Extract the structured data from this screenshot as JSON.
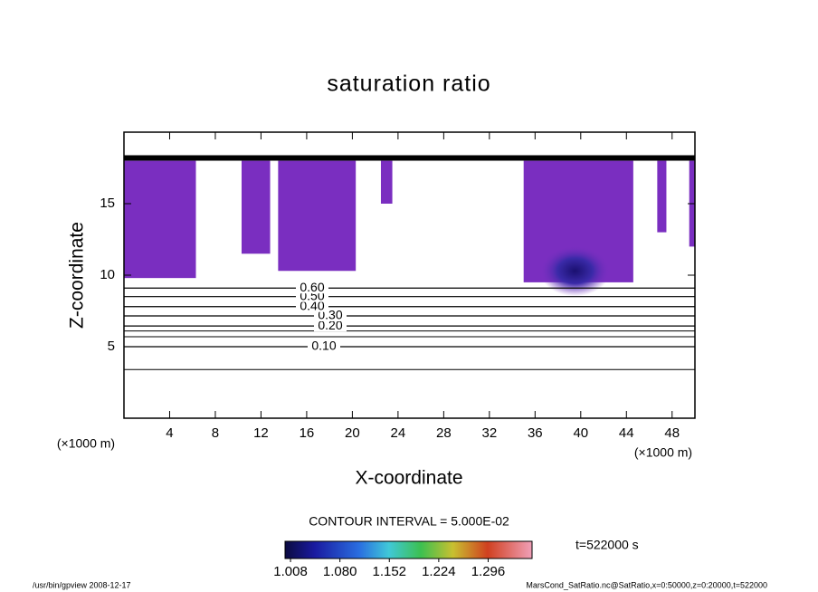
{
  "chart_data": {
    "type": "contour",
    "title": "saturation ratio",
    "xlabel": "X-coordinate",
    "ylabel": "Z-coordinate",
    "xunit": "(×1000 m)",
    "yunit": "(×1000 m)",
    "xlim": [
      0,
      50
    ],
    "xticks": [
      4,
      8,
      12,
      16,
      20,
      24,
      28,
      32,
      36,
      40,
      44,
      48
    ],
    "ylim": [
      0,
      20
    ],
    "yticks": [
      5,
      10,
      15
    ],
    "fill_color": "#7a2ec0",
    "regions": [
      {
        "x": [
          0,
          6.3
        ],
        "z": [
          9.8,
          18
        ]
      },
      {
        "x": [
          10.3,
          12.8
        ],
        "z": [
          11.5,
          18
        ]
      },
      {
        "x": [
          13.5,
          20.3
        ],
        "z": [
          10.3,
          18
        ]
      },
      {
        "x": [
          22.5,
          23.5
        ],
        "z": [
          15,
          18
        ]
      },
      {
        "x": [
          35,
          44.6
        ],
        "z": [
          9.5,
          18
        ]
      },
      {
        "x": [
          46.7,
          47.5
        ],
        "z": [
          13,
          18
        ]
      },
      {
        "x": [
          49.5,
          50
        ],
        "z": [
          12,
          18
        ]
      }
    ],
    "contours": [
      {
        "label": "0.10",
        "z": 5.0
      },
      {
        "label": "0.20",
        "z": 6.45
      },
      {
        "label": "0.30",
        "z": 7.15
      },
      {
        "label": "0.40",
        "z": 7.8
      },
      {
        "label": "0.50",
        "z": 8.5
      },
      {
        "label": "0.60",
        "z": 9.1
      }
    ],
    "unlabeled_contours_z": [
      3.4,
      5.7,
      6.1
    ],
    "boundary_z": 18.2,
    "contour_interval_text": "CONTOUR INTERVAL = 5.000E-02",
    "time_text": "t=522000 s",
    "colorbar": {
      "lim": [
        1.0,
        1.36
      ],
      "ticks": [
        1.008,
        {
          "value": 1.08,
          "label": "1.080"
        },
        1.152,
        1.224,
        1.296
      ]
    },
    "footer_left": "/usr/bin/gpview  2008-12-17",
    "footer_right": "MarsCond_SatRatio.nc@SatRatio,x=0:50000,z=0:20000,t=522000"
  }
}
